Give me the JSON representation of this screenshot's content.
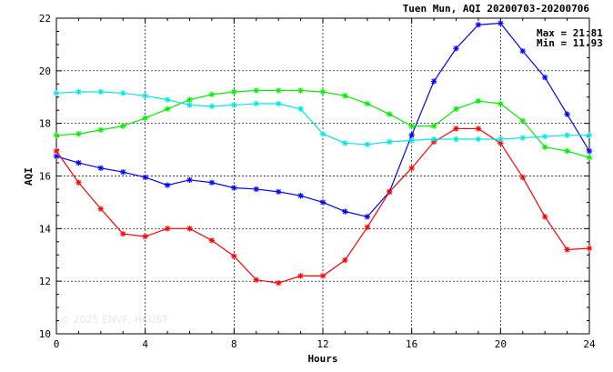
{
  "chart_data": {
    "type": "line",
    "title": "Tuen Mun, AQI 20200703-20200706",
    "xlabel": "Hours",
    "ylabel": "AQI",
    "xlim": [
      0,
      24
    ],
    "ylim": [
      10,
      22
    ],
    "xticks": [
      0,
      4,
      8,
      12,
      16,
      20,
      24
    ],
    "yticks": [
      10,
      12,
      14,
      16,
      18,
      20,
      22
    ],
    "grid": true,
    "annotations": [
      "Max = 21.81",
      "Min = 11.93"
    ],
    "watermark": "© 2025 ENVF, HKUST",
    "x": [
      0,
      1,
      2,
      3,
      4,
      5,
      6,
      7,
      8,
      9,
      10,
      11,
      12,
      13,
      14,
      15,
      16,
      17,
      18,
      19,
      20,
      21,
      22,
      23,
      24
    ],
    "series": [
      {
        "color": "#0000ff",
        "values": [
          16.75,
          16.5,
          16.3,
          16.15,
          15.95,
          15.65,
          15.85,
          15.75,
          15.55,
          15.5,
          15.4,
          15.25,
          15.0,
          14.65,
          14.45,
          15.4,
          17.55,
          19.6,
          20.85,
          21.75,
          21.81,
          20.75,
          19.75,
          18.35,
          16.95
        ]
      },
      {
        "color": "#ff0000",
        "values": [
          16.95,
          15.75,
          14.75,
          13.8,
          13.7,
          14.0,
          14.0,
          13.55,
          12.95,
          12.05,
          11.93,
          12.2,
          12.2,
          12.8,
          14.05,
          15.4,
          16.3,
          17.3,
          17.8,
          17.8,
          17.25,
          15.95,
          14.45,
          13.2,
          13.25
        ]
      },
      {
        "color": "#00ee00",
        "values": [
          17.55,
          17.6,
          17.75,
          17.9,
          18.2,
          18.55,
          18.9,
          19.1,
          19.2,
          19.25,
          19.25,
          19.25,
          19.2,
          19.05,
          18.75,
          18.35,
          17.9,
          17.9,
          18.55,
          18.85,
          18.75,
          18.1,
          17.1,
          16.95,
          16.7
        ]
      },
      {
        "color": "#00e5e5",
        "values": [
          19.15,
          19.2,
          19.2,
          19.15,
          19.05,
          18.9,
          18.7,
          18.65,
          18.7,
          18.75,
          18.75,
          18.55,
          17.6,
          17.25,
          17.2,
          17.3,
          17.35,
          17.4,
          17.4,
          17.4,
          17.4,
          17.45,
          17.5,
          17.55,
          17.55
        ]
      }
    ]
  }
}
